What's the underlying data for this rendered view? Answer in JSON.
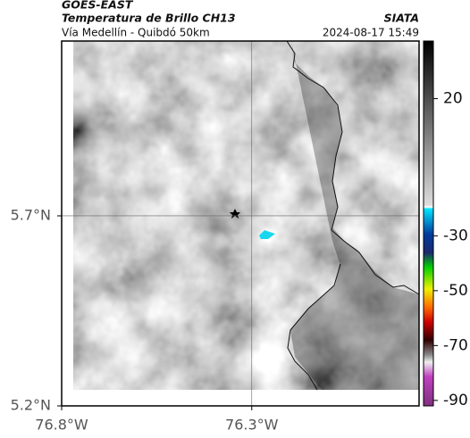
{
  "header": {
    "source": "GOES-EAST",
    "title": "Temperatura de Brillo CH13",
    "route": "Vía Medellín - Quibdó 50km",
    "org": "SIATA",
    "timestamp": "2024-08-17 15:49"
  },
  "map": {
    "latlim": [
      5.2,
      6.16
    ],
    "lonlim": [
      -76.8,
      -75.86
    ],
    "lat_ticks": [
      {
        "value": 5.7,
        "label": "5.7°N"
      },
      {
        "value": 5.2,
        "label": "5.2°N"
      }
    ],
    "lon_ticks": [
      {
        "value": -76.8,
        "label": "76.8°W"
      },
      {
        "value": -76.3,
        "label": "76.3°W"
      }
    ]
  },
  "colorbar": {
    "range": [
      41,
      -92
    ],
    "ticks": [
      20,
      -30,
      -50,
      -70,
      -90
    ]
  }
}
